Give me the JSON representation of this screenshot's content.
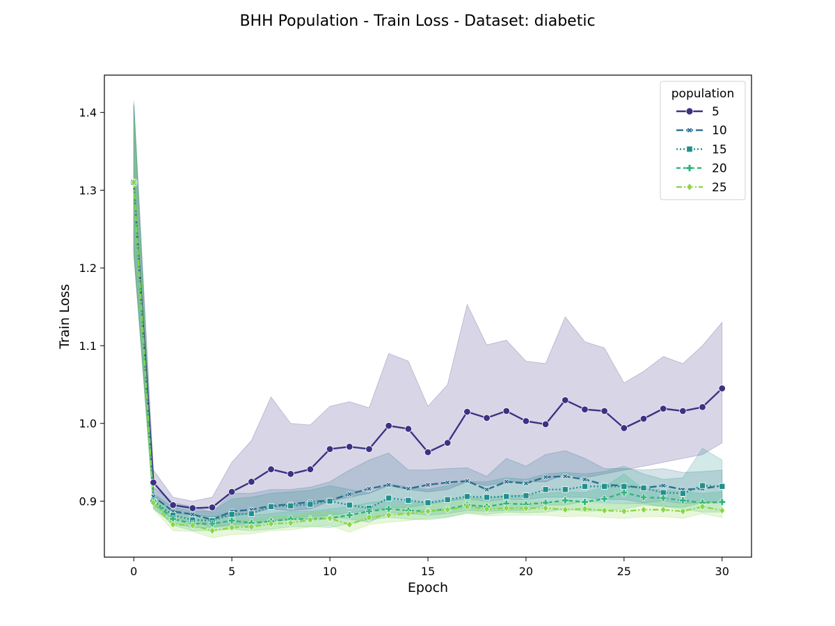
{
  "chart_data": {
    "type": "line",
    "title": "BHH Population - Train Loss - Dataset: diabetic",
    "xlabel": "Epoch",
    "ylabel": "Train Loss",
    "xlim": [
      -1.5,
      31.5
    ],
    "ylim": [
      0.828,
      1.448
    ],
    "xticks": [
      0,
      5,
      10,
      15,
      20,
      25,
      30
    ],
    "yticks": [
      0.9,
      1.0,
      1.1,
      1.2,
      1.3,
      1.4
    ],
    "xtick_labels": [
      "0",
      "5",
      "10",
      "15",
      "20",
      "25",
      "30"
    ],
    "ytick_labels": [
      "0.9",
      "1.0",
      "1.1",
      "1.2",
      "1.3",
      "1.4"
    ],
    "grid": false,
    "legend": {
      "title": "population",
      "position": "top-right"
    },
    "x": [
      0,
      1,
      2,
      3,
      4,
      5,
      6,
      7,
      8,
      9,
      10,
      11,
      12,
      13,
      14,
      15,
      16,
      17,
      18,
      19,
      20,
      21,
      22,
      23,
      24,
      25,
      26,
      27,
      28,
      29,
      30
    ],
    "series": [
      {
        "name": "5",
        "color": "#3b3283",
        "marker": "circle",
        "dash": "",
        "values": [
          1.31,
          0.924,
          0.895,
          0.891,
          0.892,
          0.912,
          0.925,
          0.941,
          0.935,
          0.941,
          0.967,
          0.97,
          0.967,
          0.997,
          0.993,
          0.963,
          0.975,
          1.015,
          1.007,
          1.016,
          1.003,
          0.999,
          1.03,
          1.018,
          1.016,
          0.994,
          1.006,
          1.019,
          1.016,
          1.021,
          1.045
        ],
        "upper": [
          1.415,
          0.94,
          0.905,
          0.9,
          0.905,
          0.95,
          0.978,
          1.034,
          1.0,
          0.998,
          1.022,
          1.028,
          1.02,
          1.09,
          1.08,
          1.022,
          1.05,
          1.153,
          1.101,
          1.107,
          1.08,
          1.077,
          1.137,
          1.105,
          1.097,
          1.052,
          1.067,
          1.086,
          1.077,
          1.1,
          1.13
        ],
        "lower": [
          1.215,
          0.908,
          0.885,
          0.882,
          0.88,
          0.88,
          0.885,
          0.89,
          0.888,
          0.89,
          0.9,
          0.905,
          0.91,
          0.92,
          0.915,
          0.912,
          0.915,
          0.925,
          0.92,
          0.925,
          0.925,
          0.925,
          0.935,
          0.93,
          0.935,
          0.94,
          0.945,
          0.95,
          0.955,
          0.96,
          0.975
        ]
      },
      {
        "name": "10",
        "color": "#2c6e8e",
        "marker": "x",
        "dash": "10,4",
        "values": [
          1.31,
          0.906,
          0.887,
          0.883,
          0.876,
          0.887,
          0.889,
          0.894,
          0.896,
          0.899,
          0.901,
          0.909,
          0.916,
          0.921,
          0.916,
          0.921,
          0.924,
          0.926,
          0.915,
          0.925,
          0.923,
          0.931,
          0.932,
          0.928,
          0.921,
          0.92,
          0.917,
          0.92,
          0.915,
          0.916,
          0.92
        ],
        "upper": [
          1.41,
          0.918,
          0.898,
          0.893,
          0.886,
          0.91,
          0.91,
          0.915,
          0.915,
          0.918,
          0.925,
          0.94,
          0.953,
          0.962,
          0.94,
          0.94,
          0.942,
          0.943,
          0.932,
          0.955,
          0.945,
          0.96,
          0.965,
          0.955,
          0.942,
          0.942,
          0.94,
          0.942,
          0.937,
          0.938,
          0.94
        ],
        "lower": [
          1.225,
          0.895,
          0.877,
          0.873,
          0.867,
          0.87,
          0.872,
          0.875,
          0.878,
          0.88,
          0.882,
          0.885,
          0.888,
          0.892,
          0.892,
          0.896,
          0.9,
          0.903,
          0.9,
          0.902,
          0.902,
          0.905,
          0.905,
          0.905,
          0.902,
          0.902,
          0.898,
          0.9,
          0.897,
          0.898,
          0.9
        ]
      },
      {
        "name": "15",
        "color": "#21908d",
        "marker": "square",
        "dash": "2,3",
        "values": [
          1.31,
          0.9,
          0.882,
          0.876,
          0.875,
          0.883,
          0.884,
          0.893,
          0.894,
          0.896,
          0.9,
          0.895,
          0.891,
          0.904,
          0.901,
          0.898,
          0.902,
          0.906,
          0.905,
          0.906,
          0.907,
          0.915,
          0.915,
          0.919,
          0.919,
          0.919,
          0.917,
          0.911,
          0.91,
          0.92,
          0.919
        ],
        "upper": [
          1.41,
          0.91,
          0.892,
          0.887,
          0.887,
          0.903,
          0.905,
          0.91,
          0.912,
          0.914,
          0.92,
          0.915,
          0.91,
          0.922,
          0.918,
          0.915,
          0.92,
          0.925,
          0.925,
          0.93,
          0.928,
          0.935,
          0.937,
          0.935,
          0.938,
          0.945,
          0.935,
          0.928,
          0.93,
          0.968,
          0.953
        ],
        "lower": [
          1.22,
          0.89,
          0.872,
          0.866,
          0.866,
          0.868,
          0.868,
          0.875,
          0.875,
          0.878,
          0.88,
          0.877,
          0.873,
          0.885,
          0.884,
          0.882,
          0.884,
          0.888,
          0.887,
          0.888,
          0.888,
          0.895,
          0.895,
          0.9,
          0.898,
          0.897,
          0.897,
          0.893,
          0.892,
          0.898,
          0.897
        ]
      },
      {
        "name": "20",
        "color": "#2fb47c",
        "marker": "plus",
        "dash": "6,4",
        "values": [
          1.31,
          0.9,
          0.877,
          0.871,
          0.871,
          0.875,
          0.872,
          0.874,
          0.877,
          0.877,
          0.878,
          0.882,
          0.887,
          0.89,
          0.888,
          0.887,
          0.89,
          0.895,
          0.893,
          0.897,
          0.896,
          0.898,
          0.901,
          0.899,
          0.903,
          0.911,
          0.905,
          0.904,
          0.901,
          0.898,
          0.899
        ],
        "upper": [
          1.41,
          0.908,
          0.885,
          0.88,
          0.88,
          0.886,
          0.882,
          0.884,
          0.887,
          0.887,
          0.89,
          0.893,
          0.898,
          0.901,
          0.899,
          0.898,
          0.901,
          0.905,
          0.903,
          0.908,
          0.907,
          0.91,
          0.912,
          0.911,
          0.918,
          0.935,
          0.915,
          0.915,
          0.912,
          0.91,
          0.912
        ],
        "lower": [
          1.22,
          0.892,
          0.869,
          0.862,
          0.862,
          0.864,
          0.862,
          0.864,
          0.867,
          0.867,
          0.866,
          0.871,
          0.876,
          0.879,
          0.877,
          0.876,
          0.879,
          0.885,
          0.883,
          0.886,
          0.885,
          0.886,
          0.89,
          0.887,
          0.888,
          0.89,
          0.895,
          0.893,
          0.89,
          0.886,
          0.886
        ]
      },
      {
        "name": "25",
        "color": "#8ad647",
        "marker": "diamond",
        "dash": "8,3,2,3",
        "values": [
          1.31,
          0.898,
          0.87,
          0.869,
          0.862,
          0.866,
          0.867,
          0.871,
          0.872,
          0.876,
          0.878,
          0.87,
          0.879,
          0.882,
          0.884,
          0.887,
          0.889,
          0.893,
          0.89,
          0.891,
          0.891,
          0.891,
          0.889,
          0.89,
          0.888,
          0.887,
          0.889,
          0.889,
          0.887,
          0.893,
          0.888
        ],
        "upper": [
          1.4,
          0.905,
          0.878,
          0.877,
          0.871,
          0.875,
          0.876,
          0.88,
          0.881,
          0.885,
          0.887,
          0.88,
          0.888,
          0.891,
          0.893,
          0.896,
          0.898,
          0.902,
          0.899,
          0.9,
          0.9,
          0.9,
          0.898,
          0.899,
          0.897,
          0.896,
          0.898,
          0.898,
          0.896,
          0.902,
          0.897
        ],
        "lower": [
          1.225,
          0.89,
          0.862,
          0.861,
          0.853,
          0.857,
          0.858,
          0.862,
          0.863,
          0.867,
          0.869,
          0.86,
          0.87,
          0.873,
          0.875,
          0.878,
          0.88,
          0.884,
          0.881,
          0.882,
          0.882,
          0.882,
          0.88,
          0.881,
          0.879,
          0.878,
          0.88,
          0.88,
          0.878,
          0.884,
          0.879
        ]
      }
    ]
  }
}
